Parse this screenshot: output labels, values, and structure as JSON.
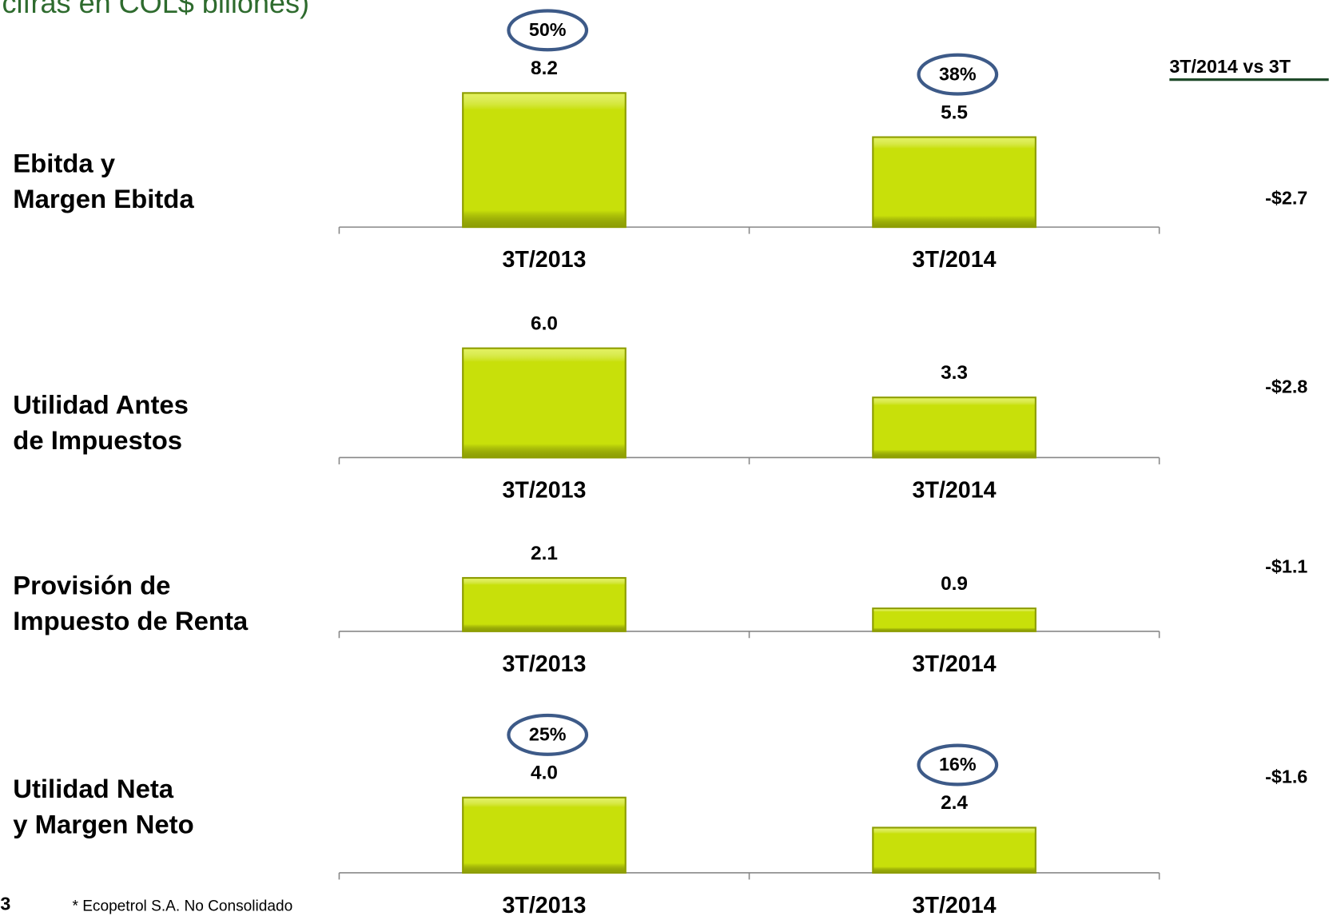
{
  "title": "cifras en COL$ billones)",
  "comparison_header": "3T/2014 vs 3T",
  "row_labels": [
    [
      "Ebitda  y",
      "Margen Ebitda"
    ],
    [
      "Utilidad Antes",
      "de Impuestos"
    ],
    [
      "Provisión de",
      "Impuesto de Renta"
    ],
    [
      "Utilidad Neta",
      "y Margen Neto"
    ]
  ],
  "differences": [
    "-$2.7",
    "-$2.8",
    "-$1.1",
    "-$1.6"
  ],
  "page_number": "3",
  "footnote": "* Ecopetrol S.A. No Consolidado",
  "chart_data": [
    {
      "type": "bar",
      "categories": [
        "3T/2013",
        "3T/2014"
      ],
      "values": [
        8.2,
        5.5
      ],
      "annotations": [
        "50%",
        "38%"
      ],
      "color": "#c8e00a"
    },
    {
      "type": "bar",
      "categories": [
        "3T/2013",
        "3T/2014"
      ],
      "values": [
        6.0,
        3.3
      ],
      "value_labels": [
        "6.0",
        "3.3"
      ],
      "color": "#c8e00a"
    },
    {
      "type": "bar",
      "categories": [
        "3T/2013",
        "3T/2014"
      ],
      "values": [
        2.1,
        0.9
      ],
      "color": "#c8e00a"
    },
    {
      "type": "bar",
      "categories": [
        "3T/2013",
        "3T/2014"
      ],
      "values": [
        4.0,
        2.4
      ],
      "value_labels": [
        "4.0",
        "2.4"
      ],
      "annotations": [
        "25%",
        "16%"
      ],
      "color": "#c8e00a"
    }
  ]
}
